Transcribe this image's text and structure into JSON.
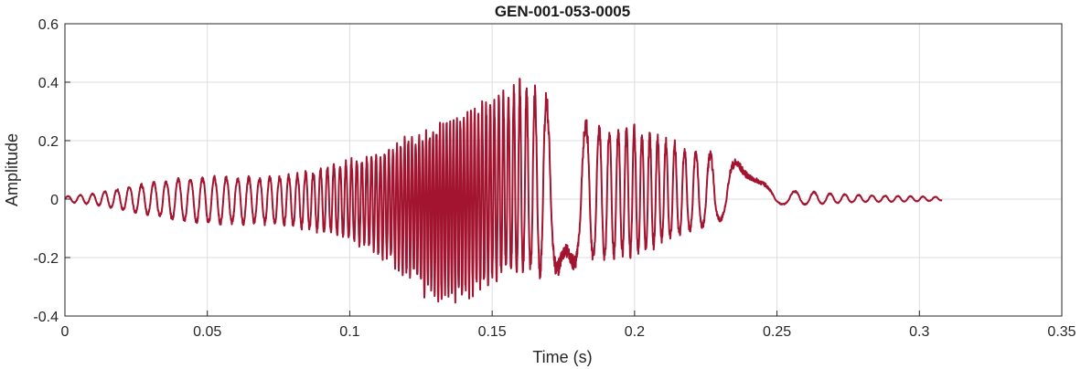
{
  "chart_data": {
    "type": "line",
    "title": "GEN-001-053-0005",
    "xlabel": "Time (s)",
    "ylabel": "Amplitude",
    "xlim": [
      0,
      0.35
    ],
    "ylim": [
      -0.4,
      0.6
    ],
    "xticks": [
      0,
      0.05,
      0.1,
      0.15,
      0.2,
      0.25,
      0.3,
      0.35
    ],
    "xtick_labels": [
      "0",
      "0.05",
      "0.1",
      "0.15",
      "0.2",
      "0.25",
      "0.3",
      "0.35"
    ],
    "yticks": [
      -0.4,
      -0.2,
      0,
      0.2,
      0.4,
      0.6
    ],
    "ytick_labels": [
      "-0.4",
      "-0.2",
      "0",
      "0.2",
      "0.4",
      "0.6"
    ],
    "grid": true,
    "line_color": "#a2142f",
    "series": [
      {
        "x_start": 0,
        "x_end": 0.308,
        "envelope": {
          "t": [
            0,
            0.01,
            0.02,
            0.03,
            0.04,
            0.05,
            0.06,
            0.07,
            0.08,
            0.09,
            0.1,
            0.11,
            0.12,
            0.13,
            0.14,
            0.15,
            0.16,
            0.17,
            0.18,
            0.19,
            0.2,
            0.21,
            0.22,
            0.23,
            0.24,
            0.245,
            0.25,
            0.26,
            0.27,
            0.28,
            0.29,
            0.3,
            0.308
          ],
          "pos": [
            0.01,
            0.02,
            0.04,
            0.06,
            0.075,
            0.08,
            0.08,
            0.08,
            0.09,
            0.11,
            0.14,
            0.16,
            0.22,
            0.26,
            0.3,
            0.36,
            0.42,
            0.38,
            0.3,
            0.26,
            0.26,
            0.22,
            0.18,
            0.16,
            0.12,
            0.06,
            0.03,
            0.03,
            0.02,
            0.015,
            0.012,
            0.01,
            0.008
          ],
          "neg": [
            -0.01,
            -0.02,
            -0.04,
            -0.06,
            -0.08,
            -0.09,
            -0.09,
            -0.09,
            -0.1,
            -0.12,
            -0.15,
            -0.2,
            -0.28,
            -0.38,
            -0.36,
            -0.3,
            -0.26,
            -0.28,
            -0.24,
            -0.22,
            -0.2,
            -0.16,
            -0.12,
            -0.08,
            -0.06,
            -0.04,
            -0.02,
            -0.02,
            -0.015,
            -0.01,
            -0.01,
            -0.008,
            -0.005
          ]
        }
      }
    ]
  }
}
